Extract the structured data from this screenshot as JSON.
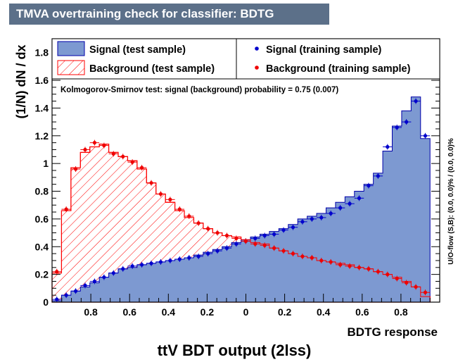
{
  "chart_data": {
    "type": "bar",
    "title": "TMVA overtraining check for classifier: BDTG",
    "xlabel": "BDTG response",
    "ylabel": "(1/N) dN / dx",
    "footer": "ttV BDT output (2lss)",
    "right_note": "U/O-flow (S,B): (0.0, 0.0)% / (0.0, 0.0)%",
    "ks_text": "Kolmogorov-Smirnov test: signal (background) probability =  0.75 (0.007)",
    "xlim": [
      -1.0,
      1.0
    ],
    "ylim": [
      0,
      1.9
    ],
    "x_ticks": [
      -0.8,
      -0.6,
      -0.4,
      -0.2,
      0,
      0.2,
      0.4,
      0.6,
      0.8
    ],
    "x_tick_labels": [
      "0.8",
      "0.6",
      "0.4",
      "0.2",
      "0",
      "0.2",
      "0.4",
      "0.6",
      "0.8"
    ],
    "y_ticks": [
      0,
      0.2,
      0.4,
      0.6,
      0.8,
      1,
      1.2,
      1.4,
      1.6,
      1.8
    ],
    "y_tick_labels": [
      "0",
      "0.2",
      "0.4",
      "0.6",
      "0.8",
      "1",
      "1.2",
      "1.4",
      "1.6",
      "1.8"
    ],
    "bins": {
      "low": -1.0,
      "high": 0.95,
      "n": 40
    },
    "series": [
      {
        "name": "Signal (test sample)",
        "style": "filled",
        "color": "#7d99d1",
        "values": [
          0.01,
          0.05,
          0.08,
          0.11,
          0.14,
          0.18,
          0.21,
          0.24,
          0.25,
          0.27,
          0.28,
          0.29,
          0.3,
          0.31,
          0.32,
          0.34,
          0.36,
          0.38,
          0.4,
          0.43,
          0.45,
          0.47,
          0.49,
          0.51,
          0.53,
          0.56,
          0.6,
          0.62,
          0.64,
          0.68,
          0.72,
          0.76,
          0.8,
          0.85,
          0.93,
          1.09,
          1.27,
          1.38,
          1.48,
          1.18
        ]
      },
      {
        "name": "Background (test sample)",
        "style": "hatched",
        "color": "#ff0000",
        "values": [
          0.21,
          0.66,
          0.97,
          1.08,
          1.12,
          1.14,
          1.08,
          1.05,
          1.02,
          0.96,
          0.86,
          0.78,
          0.72,
          0.66,
          0.61,
          0.57,
          0.53,
          0.5,
          0.48,
          0.47,
          0.45,
          0.43,
          0.42,
          0.39,
          0.37,
          0.35,
          0.33,
          0.32,
          0.3,
          0.29,
          0.28,
          0.27,
          0.25,
          0.24,
          0.22,
          0.2,
          0.18,
          0.15,
          0.11,
          0.04
        ]
      },
      {
        "name": "Signal (training sample)",
        "style": "points",
        "color": "#0000cc",
        "values": [
          0.02,
          0.05,
          0.08,
          0.12,
          0.15,
          0.18,
          0.21,
          0.24,
          0.26,
          0.27,
          0.28,
          0.29,
          0.3,
          0.31,
          0.32,
          0.33,
          0.35,
          0.37,
          0.39,
          0.42,
          0.44,
          0.46,
          0.48,
          0.49,
          0.52,
          0.54,
          0.58,
          0.6,
          0.61,
          0.64,
          0.68,
          0.71,
          0.75,
          0.84,
          0.91,
          1.12,
          1.26,
          1.3,
          1.45,
          1.2
        ]
      },
      {
        "name": "Background (training sample)",
        "style": "points",
        "color": "#ee0000",
        "values": [
          0.22,
          0.67,
          0.96,
          1.1,
          1.15,
          1.13,
          1.07,
          1.05,
          1.01,
          0.97,
          0.86,
          0.78,
          0.74,
          0.67,
          0.62,
          0.57,
          0.53,
          0.5,
          0.48,
          0.46,
          0.44,
          0.42,
          0.41,
          0.39,
          0.37,
          0.35,
          0.33,
          0.32,
          0.3,
          0.29,
          0.27,
          0.26,
          0.25,
          0.24,
          0.22,
          0.2,
          0.17,
          0.14,
          0.11,
          0.07
        ]
      }
    ],
    "legend_position": "top"
  }
}
